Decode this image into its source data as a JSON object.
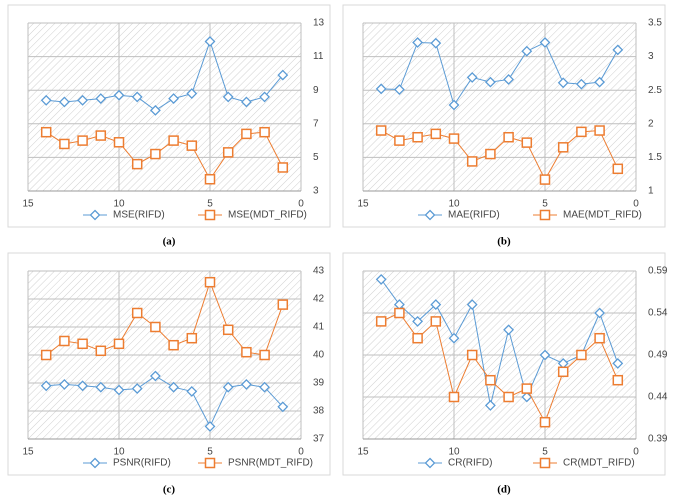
{
  "chart_data": [
    {
      "type": "line",
      "caption": "(a)",
      "x": [
        14,
        13,
        12,
        11,
        10,
        9,
        8,
        7,
        6,
        5,
        4,
        3,
        2,
        1
      ],
      "xlim": [
        15,
        0
      ],
      "xticks": [
        15,
        10,
        5,
        0
      ],
      "ylim": [
        3,
        13
      ],
      "yticks": [
        3,
        5,
        7,
        9,
        11,
        13
      ],
      "grid": true,
      "series": [
        {
          "name": "MSE(RIFD)",
          "color": "#5b9bd5",
          "marker": "diamond",
          "values": [
            8.4,
            8.3,
            8.4,
            8.5,
            8.7,
            8.6,
            7.8,
            8.5,
            8.8,
            11.9,
            8.6,
            8.3,
            8.6,
            9.9
          ]
        },
        {
          "name": "MSE(MDT_RIFD)",
          "color": "#ed7d31",
          "marker": "square",
          "values": [
            6.5,
            5.8,
            6.0,
            6.3,
            5.9,
            4.6,
            5.2,
            6.0,
            5.7,
            3.7,
            5.3,
            6.4,
            6.5,
            4.4
          ]
        }
      ]
    },
    {
      "type": "line",
      "caption": "(b)",
      "x": [
        14,
        13,
        12,
        11,
        10,
        9,
        8,
        7,
        6,
        5,
        4,
        3,
        2,
        1
      ],
      "xlim": [
        15,
        0
      ],
      "xticks": [
        15,
        10,
        5,
        0
      ],
      "ylim": [
        1,
        3.5
      ],
      "yticks": [
        1,
        1.5,
        2,
        2.5,
        3,
        3.5
      ],
      "grid": true,
      "series": [
        {
          "name": "MAE(RIFD)",
          "color": "#5b9bd5",
          "marker": "diamond",
          "values": [
            2.52,
            2.51,
            3.21,
            3.2,
            2.28,
            2.69,
            2.62,
            2.66,
            3.08,
            3.21,
            2.61,
            2.59,
            2.62,
            3.1
          ]
        },
        {
          "name": "MAE(MDT_RIFD)",
          "color": "#ed7d31",
          "marker": "square",
          "values": [
            1.9,
            1.75,
            1.8,
            1.85,
            1.78,
            1.44,
            1.55,
            1.8,
            1.72,
            1.17,
            1.65,
            1.88,
            1.9,
            1.33
          ]
        }
      ]
    },
    {
      "type": "line",
      "caption": "(c)",
      "x": [
        14,
        13,
        12,
        11,
        10,
        9,
        8,
        7,
        6,
        5,
        4,
        3,
        2,
        1
      ],
      "xlim": [
        15,
        0
      ],
      "xticks": [
        15,
        10,
        5,
        0
      ],
      "ylim": [
        37,
        43
      ],
      "yticks": [
        37,
        38,
        39,
        40,
        41,
        42,
        43
      ],
      "grid": true,
      "series": [
        {
          "name": "PSNR(RIFD)",
          "color": "#5b9bd5",
          "marker": "diamond",
          "values": [
            38.9,
            38.95,
            38.9,
            38.85,
            38.75,
            38.8,
            39.25,
            38.85,
            38.7,
            37.45,
            38.85,
            38.95,
            38.85,
            38.15
          ]
        },
        {
          "name": "PSNR(MDT_RIFD)",
          "color": "#ed7d31",
          "marker": "square",
          "values": [
            40.0,
            40.5,
            40.4,
            40.15,
            40.4,
            41.5,
            41.0,
            40.35,
            40.6,
            42.6,
            40.9,
            40.1,
            40.0,
            41.8
          ]
        }
      ]
    },
    {
      "type": "line",
      "caption": "(d)",
      "x": [
        14,
        13,
        12,
        11,
        10,
        9,
        8,
        7,
        6,
        5,
        4,
        3,
        2,
        1
      ],
      "xlim": [
        15,
        0
      ],
      "xticks": [
        15,
        10,
        5,
        0
      ],
      "ylim": [
        0.39,
        0.59
      ],
      "yticks": [
        0.39,
        0.44,
        0.49,
        0.54,
        0.59
      ],
      "grid": true,
      "series": [
        {
          "name": "CR(RIFD)",
          "color": "#5b9bd5",
          "marker": "diamond",
          "values": [
            0.58,
            0.55,
            0.53,
            0.55,
            0.51,
            0.55,
            0.43,
            0.52,
            0.44,
            0.49,
            0.48,
            0.49,
            0.54,
            0.48
          ]
        },
        {
          "name": "CR(MDT_RIFD)",
          "color": "#ed7d31",
          "marker": "square",
          "values": [
            0.53,
            0.54,
            0.51,
            0.53,
            0.44,
            0.49,
            0.46,
            0.44,
            0.45,
            0.41,
            0.47,
            0.49,
            0.51,
            0.46
          ]
        }
      ]
    }
  ]
}
